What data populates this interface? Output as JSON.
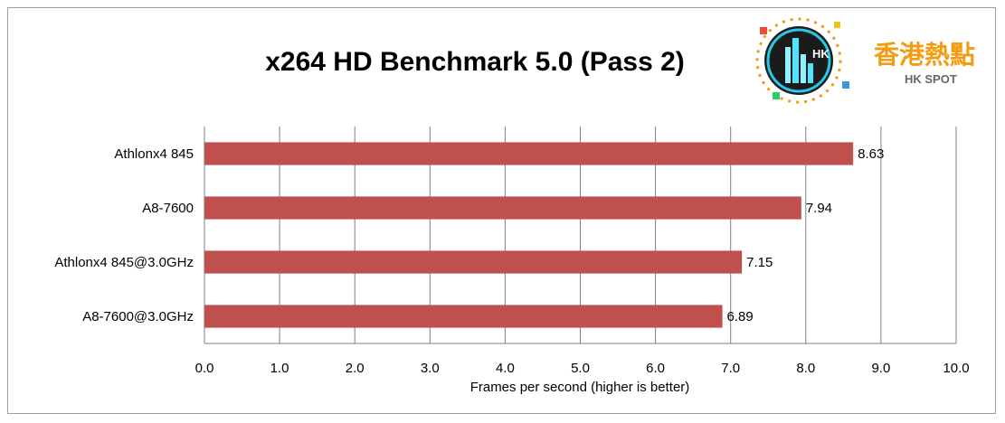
{
  "chart_data": {
    "type": "bar",
    "orientation": "horizontal",
    "title": "x264 HD Benchmark 5.0 (Pass 2)",
    "xlabel": "Frames per second (higher is better)",
    "ylabel": "",
    "categories": [
      "Athlonx4 845",
      "A8-7600",
      "Athlonx4 845@3.0GHz",
      "A8-7600@3.0GHz"
    ],
    "values": [
      8.63,
      7.94,
      7.15,
      6.89
    ],
    "value_labels": [
      "8.63",
      "7.94",
      "7.15",
      "6.89"
    ],
    "xlim": [
      0,
      10
    ],
    "xticks": [
      "0.0",
      "1.0",
      "2.0",
      "3.0",
      "4.0",
      "5.0",
      "6.0",
      "7.0",
      "8.0",
      "9.0",
      "10.0"
    ],
    "grid": "vertical",
    "legend": "none",
    "bar_color": "#c0504d"
  },
  "logo": {
    "hk_text": "HK",
    "chinese_text": "香港熱點",
    "brand_text": "HK SPOT",
    "brand_color": "#f39c12"
  }
}
